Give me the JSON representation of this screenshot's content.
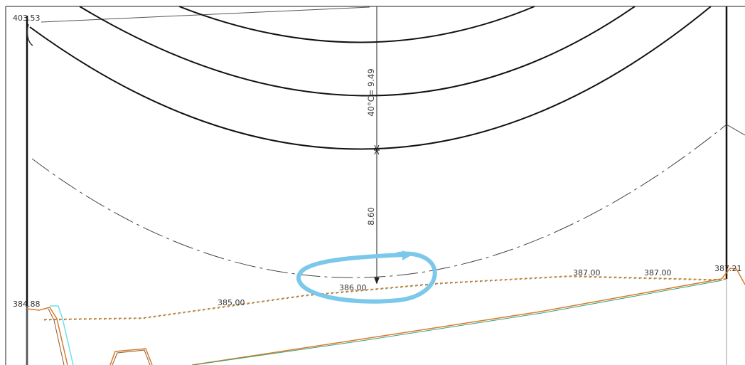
{
  "annotations": {
    "dim_upper": "40°C= 9.49",
    "dim_lower": "8.60"
  },
  "elevation_labels": {
    "top_left": "403.53",
    "left_ground": "384.88",
    "ground_385": "385.00",
    "ground_386": "386.00",
    "ground_387_a": "387.00",
    "ground_387_b": "387.00",
    "right_ground": "387.21"
  },
  "colors": {
    "conductor": "#111111",
    "clearance_dash": "#444444",
    "ground_orange": "#d97a2b",
    "ground_green": "#3aa37a",
    "ground_cyan": "#6fe0ea",
    "highlight": "#7cc8ea"
  }
}
